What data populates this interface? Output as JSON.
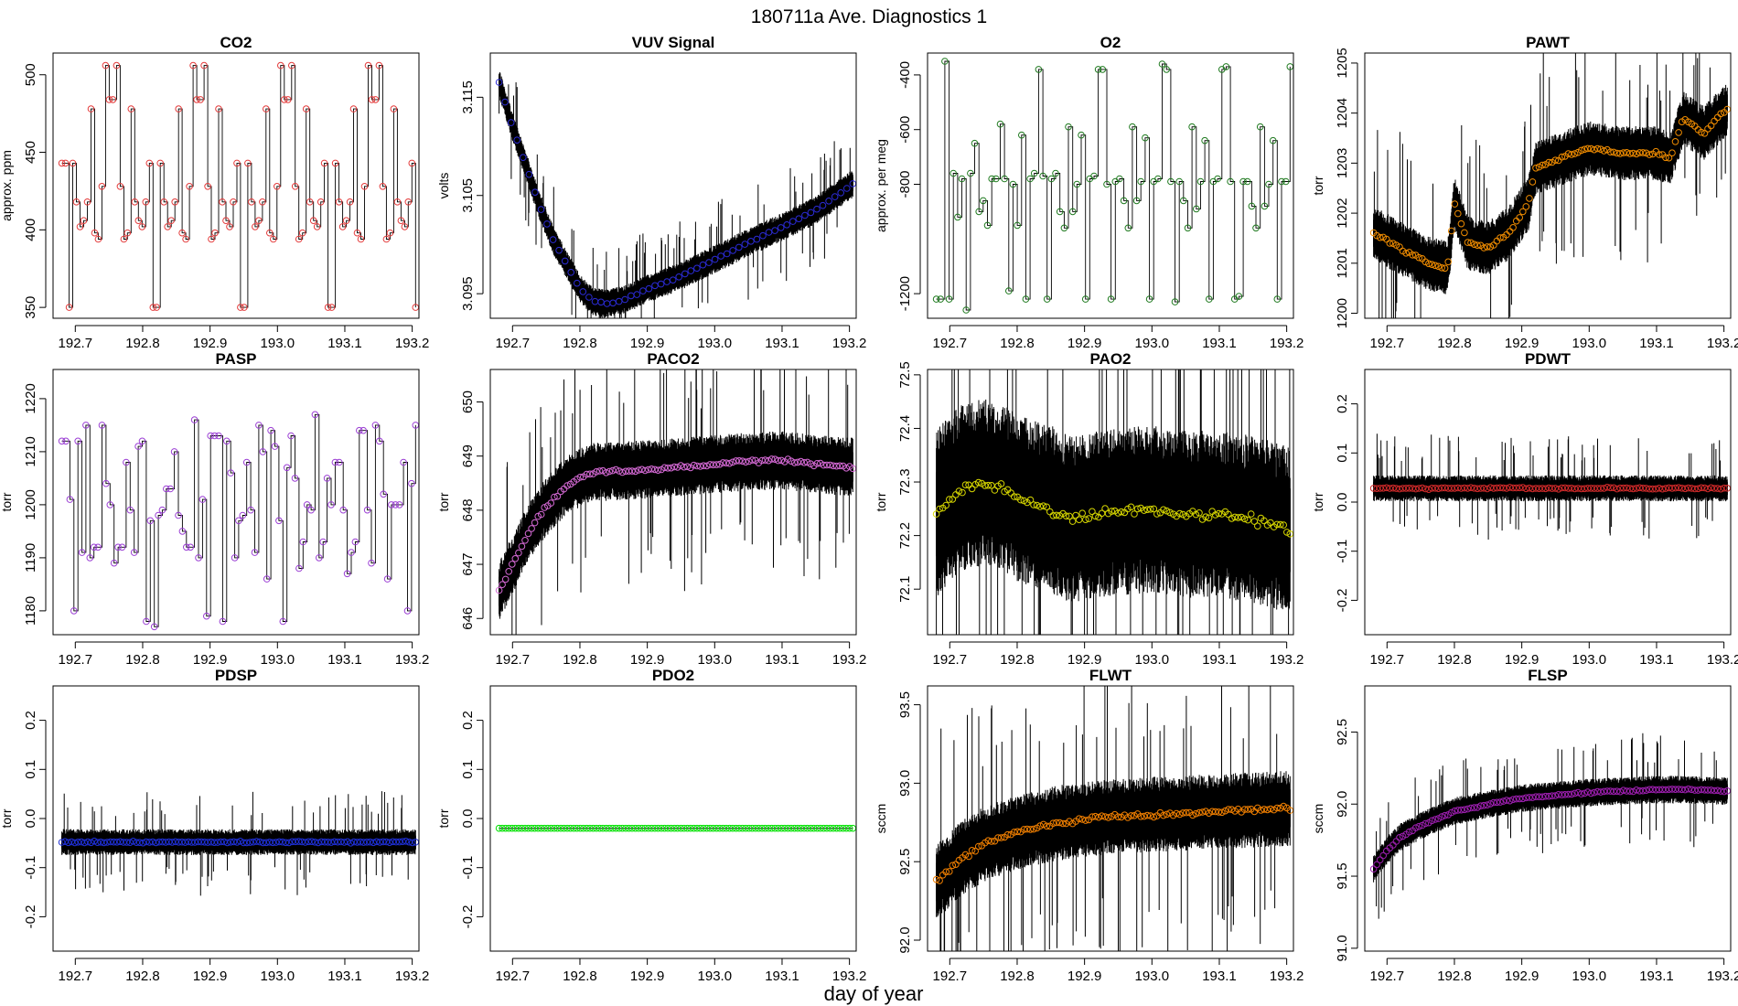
{
  "figure": {
    "title": "180711a   Ave. Diagnostics 1",
    "xlabel": "day of year"
  },
  "colors": {
    "CO2": "#e33b3b",
    "VUV": "#2b2bd6",
    "O2": "#1f7a1f",
    "PAWT": "#f08c00",
    "PASP": "#9b3fd4",
    "PACO2": "#d469d4",
    "PAO2": "#d6d600",
    "PDWT": "#d12a2a",
    "PDSP": "#1e2fd6",
    "PDO2": "#00e000",
    "FLWT": "#f07f00",
    "FLSP": "#9e1fb0"
  },
  "chart_data": [
    {
      "id": "CO2",
      "type": "line",
      "title": "CO2",
      "ylabel": "approx. ppm",
      "xlim": [
        192.667,
        193.21
      ],
      "ylim": [
        343,
        514
      ],
      "xticks": [
        192.7,
        192.8,
        192.9,
        193.0,
        193.1,
        193.2
      ],
      "xtick_labels": [
        "192.7",
        "192.8",
        "192.9",
        "193.0",
        "193.1",
        "193.2"
      ],
      "yticks": [
        350,
        400,
        450,
        500
      ],
      "ytick_labels": [
        "350",
        "400",
        "450",
        "500"
      ],
      "x_start": 192.68,
      "x_end": 193.205,
      "levels": [
        443,
        443,
        350,
        443,
        418,
        402,
        406,
        418,
        478,
        398,
        394,
        428,
        506,
        484,
        484,
        506,
        428,
        394,
        398,
        478,
        418,
        406,
        402,
        418,
        443,
        350,
        350,
        443,
        418,
        402,
        406,
        418,
        478,
        398,
        394,
        428,
        506,
        484,
        484,
        506,
        428,
        394,
        398,
        478,
        418,
        406,
        402,
        418,
        443,
        350,
        350,
        443,
        418,
        402,
        406,
        418,
        478,
        398,
        394,
        428,
        506,
        484,
        484,
        506,
        428,
        394,
        398,
        478,
        418,
        406,
        402,
        418,
        443,
        350,
        350,
        443,
        418,
        402,
        406,
        418,
        478,
        398,
        394,
        428,
        506,
        484,
        484,
        506,
        428,
        394,
        398,
        478,
        418,
        406,
        402,
        418,
        443,
        350
      ],
      "marker_every": 1
    },
    {
      "id": "VUV",
      "type": "line",
      "title": "VUV Signal",
      "ylabel": "volts",
      "xlim": [
        192.667,
        193.21
      ],
      "ylim": [
        3.0925,
        3.1195
      ],
      "xticks": [
        192.7,
        192.8,
        192.9,
        193.0,
        193.1,
        193.2
      ],
      "xtick_labels": [
        "192.7",
        "192.8",
        "192.9",
        "193.0",
        "193.1",
        "193.2"
      ],
      "yticks": [
        3.095,
        3.105,
        3.115
      ],
      "ytick_labels": [
        "3.095",
        "3.105",
        "3.115"
      ],
      "x_start": 192.68,
      "x_end": 193.205,
      "curve_x": [
        192.68,
        192.7,
        192.72,
        192.74,
        192.76,
        192.78,
        192.8,
        192.82,
        192.84,
        192.86,
        192.88,
        192.9,
        192.95,
        193.0,
        193.05,
        193.1,
        193.15,
        193.205
      ],
      "curve_y": [
        3.1165,
        3.112,
        3.108,
        3.104,
        3.1005,
        3.098,
        3.0955,
        3.0942,
        3.094,
        3.0943,
        3.0948,
        3.0955,
        3.0968,
        3.0985,
        3.1002,
        3.1018,
        3.1035,
        3.1062
      ],
      "markers": 60,
      "band": 0.0012
    },
    {
      "id": "O2",
      "type": "line",
      "title": "O2",
      "ylabel": "approx. per meg",
      "xlim": [
        192.667,
        193.21
      ],
      "ylim": [
        -1290,
        -320
      ],
      "xticks": [
        192.7,
        192.8,
        192.9,
        193.0,
        193.1,
        193.2
      ],
      "xtick_labels": [
        "192.7",
        "192.8",
        "192.9",
        "193.0",
        "193.1",
        "193.2"
      ],
      "yticks": [
        -1200,
        -800,
        -600,
        -400
      ],
      "ytick_labels": [
        "-1200",
        "-800",
        "-600",
        "-400"
      ],
      "x_start": 192.68,
      "x_end": 193.205,
      "levels": [
        -1220,
        -1220,
        -350,
        -1220,
        -760,
        -920,
        -780,
        -1260,
        -760,
        -650,
        -900,
        -860,
        -950,
        -780,
        -780,
        -580,
        -780,
        -1190,
        -800,
        -950,
        -620,
        -1220,
        -780,
        -760,
        -380,
        -770,
        -1220,
        -780,
        -760,
        -900,
        -960,
        -590,
        -900,
        -800,
        -620,
        -1220,
        -780,
        -770,
        -380,
        -380,
        -800,
        -1220,
        -790,
        -780,
        -860,
        -960,
        -590,
        -860,
        -790,
        -630,
        -1220,
        -790,
        -780,
        -360,
        -380,
        -790,
        -1230,
        -790,
        -860,
        -960,
        -590,
        -890,
        -790,
        -640,
        -1220,
        -790,
        -780,
        -380,
        -370,
        -790,
        -1220,
        -1210,
        -790,
        -790,
        -880,
        -960,
        -590,
        -880,
        -800,
        -640,
        -1220,
        -790,
        -790,
        -370
      ],
      "marker_every": 1
    },
    {
      "id": "PAWT",
      "type": "line",
      "title": "PAWT",
      "ylabel": "torr",
      "xlim": [
        192.667,
        193.21
      ],
      "ylim": [
        1199.9,
        1205.2
      ],
      "xticks": [
        192.7,
        192.8,
        192.9,
        193.0,
        193.1,
        193.2
      ],
      "xtick_labels": [
        "192.7",
        "192.8",
        "192.9",
        "193.0",
        "193.1",
        "193.2"
      ],
      "yticks": [
        1200,
        1201,
        1202,
        1203,
        1204,
        1205
      ],
      "ytick_labels": [
        "1200",
        "1201",
        "1202",
        "1203",
        "1204",
        "1205"
      ],
      "x_start": 192.68,
      "x_end": 193.205,
      "curve_x": [
        192.68,
        192.72,
        192.76,
        192.79,
        192.8,
        192.82,
        192.85,
        192.88,
        192.91,
        192.92,
        192.96,
        193.0,
        193.05,
        193.1,
        193.12,
        193.14,
        193.17,
        193.205
      ],
      "curve_y": [
        1201.6,
        1201.3,
        1201.0,
        1200.9,
        1202.2,
        1201.4,
        1201.3,
        1201.6,
        1202.2,
        1202.9,
        1203.1,
        1203.3,
        1203.2,
        1203.2,
        1203.1,
        1203.9,
        1203.6,
        1204.1
      ],
      "markers": 110,
      "band": 0.45
    },
    {
      "id": "PASP",
      "type": "line",
      "title": "PASP",
      "ylabel": "torr",
      "xlim": [
        192.667,
        193.21
      ],
      "ylim": [
        1175.5,
        1225.5
      ],
      "xticks": [
        192.7,
        192.8,
        192.9,
        193.0,
        193.1,
        193.2
      ],
      "xtick_labels": [
        "192.7",
        "192.8",
        "192.9",
        "193.0",
        "193.1",
        "193.2"
      ],
      "yticks": [
        1180,
        1190,
        1200,
        1210,
        1220
      ],
      "ytick_labels": [
        "1180",
        "1190",
        "1200",
        "1210",
        "1220"
      ],
      "x_start": 192.68,
      "x_end": 193.205,
      "levels": [
        1212,
        1212,
        1201,
        1180,
        1212,
        1191,
        1215,
        1190,
        1192,
        1192,
        1215,
        1204,
        1200,
        1189,
        1192,
        1192,
        1208,
        1199,
        1191,
        1211,
        1212,
        1178,
        1197,
        1177,
        1198,
        1199,
        1203,
        1203,
        1210,
        1198,
        1195,
        1192,
        1192,
        1216,
        1190,
        1201,
        1179,
        1213,
        1213,
        1213,
        1178,
        1212,
        1206,
        1190,
        1197,
        1198,
        1208,
        1199,
        1191,
        1215,
        1210,
        1186,
        1214,
        1211,
        1197,
        1178,
        1207,
        1213,
        1205,
        1188,
        1193,
        1200,
        1199,
        1217,
        1190,
        1193,
        1205,
        1200,
        1208,
        1208,
        1199,
        1187,
        1191,
        1193,
        1214,
        1214,
        1199,
        1189,
        1215,
        1212,
        1202,
        1186,
        1200,
        1200,
        1200,
        1208,
        1180,
        1204,
        1215
      ],
      "marker_every": 1
    },
    {
      "id": "PACO2",
      "type": "line",
      "title": "PACO2",
      "ylabel": "torr",
      "xlim": [
        192.667,
        193.21
      ],
      "ylim": [
        645.7,
        650.6
      ],
      "xticks": [
        192.7,
        192.8,
        192.9,
        193.0,
        193.1,
        193.2
      ],
      "xtick_labels": [
        "192.7",
        "192.8",
        "192.9",
        "193.0",
        "193.1",
        "193.2"
      ],
      "yticks": [
        646,
        647,
        648,
        649,
        650
      ],
      "ytick_labels": [
        "646",
        "647",
        "648",
        "649",
        "650"
      ],
      "x_start": 192.68,
      "x_end": 193.205,
      "curve_x": [
        192.68,
        192.7,
        192.72,
        192.74,
        192.76,
        192.78,
        192.8,
        192.82,
        192.85,
        192.9,
        192.95,
        193.0,
        193.05,
        193.1,
        193.15,
        193.205
      ],
      "curve_y": [
        646.5,
        647.0,
        647.5,
        647.9,
        648.2,
        648.45,
        648.6,
        648.7,
        648.72,
        648.75,
        648.8,
        648.85,
        648.9,
        648.92,
        648.85,
        648.8
      ],
      "markers": 110,
      "band": 0.45
    },
    {
      "id": "PAO2",
      "type": "line",
      "title": "PAO2",
      "ylabel": "torr",
      "xlim": [
        192.667,
        193.21
      ],
      "ylim": [
        72.015,
        72.51
      ],
      "xticks": [
        192.7,
        192.8,
        192.9,
        193.0,
        193.1,
        193.2
      ],
      "xtick_labels": [
        "192.7",
        "192.8",
        "192.9",
        "193.0",
        "193.1",
        "193.2"
      ],
      "yticks": [
        72.1,
        72.2,
        72.3,
        72.4,
        72.5
      ],
      "ytick_labels": [
        "72.1",
        "72.2",
        "72.3",
        "72.4",
        "72.5"
      ],
      "x_start": 192.68,
      "x_end": 193.205,
      "curve_x": [
        192.68,
        192.7,
        192.72,
        192.75,
        192.78,
        192.8,
        192.85,
        192.88,
        192.92,
        193.0,
        193.05,
        193.1,
        193.15,
        193.205
      ],
      "curve_y": [
        72.24,
        72.27,
        72.29,
        72.3,
        72.29,
        72.27,
        72.25,
        72.23,
        72.24,
        72.25,
        72.24,
        72.24,
        72.23,
        72.21
      ],
      "markers": 110,
      "band": 0.13
    },
    {
      "id": "PDWT",
      "type": "line",
      "title": "PDWT",
      "ylabel": "torr",
      "xlim": [
        192.667,
        193.21
      ],
      "ylim": [
        -0.27,
        0.27
      ],
      "xticks": [
        192.7,
        192.8,
        192.9,
        193.0,
        193.1,
        193.2
      ],
      "xtick_labels": [
        "192.7",
        "192.8",
        "192.9",
        "193.0",
        "193.1",
        "193.2"
      ],
      "yticks": [
        -0.2,
        -0.1,
        0.0,
        0.1,
        0.2
      ],
      "ytick_labels": [
        "-0.2",
        "-0.1",
        "0.0",
        "0.1",
        "0.2"
      ],
      "x_start": 192.68,
      "x_end": 193.205,
      "curve_x": [
        192.68,
        193.205
      ],
      "curve_y": [
        0.028,
        0.028
      ],
      "markers": 110,
      "band": 0.022
    },
    {
      "id": "PDSP",
      "type": "line",
      "title": "PDSP",
      "ylabel": "torr",
      "xlim": [
        192.667,
        193.21
      ],
      "ylim": [
        -0.27,
        0.27
      ],
      "xticks": [
        192.7,
        192.8,
        192.9,
        193.0,
        193.1,
        193.2
      ],
      "xtick_labels": [
        "192.7",
        "192.8",
        "192.9",
        "193.0",
        "193.1",
        "193.2"
      ],
      "yticks": [
        -0.2,
        -0.1,
        0.0,
        0.1,
        0.2
      ],
      "ytick_labels": [
        "-0.2",
        "-0.1",
        "0.0",
        "0.1",
        "0.2"
      ],
      "x_start": 192.68,
      "x_end": 193.205,
      "curve_x": [
        192.68,
        193.205
      ],
      "curve_y": [
        -0.048,
        -0.048
      ],
      "markers": 110,
      "band": 0.022
    },
    {
      "id": "PDO2",
      "type": "line",
      "title": "PDO2",
      "ylabel": "torr",
      "xlim": [
        192.667,
        193.21
      ],
      "ylim": [
        -0.27,
        0.27
      ],
      "xticks": [
        192.7,
        192.8,
        192.9,
        193.0,
        193.1,
        193.2
      ],
      "xtick_labels": [
        "192.7",
        "192.8",
        "192.9",
        "193.0",
        "193.1",
        "193.2"
      ],
      "yticks": [
        -0.2,
        -0.1,
        0.0,
        0.1,
        0.2
      ],
      "ytick_labels": [
        "-0.2",
        "-0.1",
        "0.0",
        "0.1",
        "0.2"
      ],
      "x_start": 192.68,
      "x_end": 193.205,
      "curve_x": [
        192.68,
        193.205
      ],
      "curve_y": [
        -0.02,
        -0.02
      ],
      "markers": 110,
      "band": 0.0
    },
    {
      "id": "FLWT",
      "type": "line",
      "title": "FLWT",
      "ylabel": "sccm",
      "xlim": [
        192.667,
        193.21
      ],
      "ylim": [
        91.93,
        93.62
      ],
      "xticks": [
        192.7,
        192.8,
        192.9,
        193.0,
        193.1,
        193.2
      ],
      "xtick_labels": [
        "192.7",
        "192.8",
        "192.9",
        "193.0",
        "193.1",
        "193.2"
      ],
      "yticks": [
        92.0,
        92.5,
        93.0,
        93.5
      ],
      "ytick_labels": [
        "92.0",
        "92.5",
        "93.0",
        "93.5"
      ],
      "x_start": 192.68,
      "x_end": 193.205,
      "curve_x": [
        192.68,
        192.7,
        192.72,
        192.75,
        192.8,
        192.85,
        192.9,
        192.95,
        193.0,
        193.05,
        193.1,
        193.15,
        193.205
      ],
      "curve_y": [
        92.37,
        92.45,
        92.53,
        92.61,
        92.69,
        92.74,
        92.77,
        92.79,
        92.8,
        92.81,
        92.82,
        92.83,
        92.84
      ],
      "markers": 110,
      "band": 0.2
    },
    {
      "id": "FLSP",
      "type": "line",
      "title": "FLSP",
      "ylabel": "sccm",
      "xlim": [
        192.667,
        193.21
      ],
      "ylim": [
        90.98,
        92.82
      ],
      "xticks": [
        192.7,
        192.8,
        192.9,
        193.0,
        193.1,
        193.2
      ],
      "xtick_labels": [
        "192.7",
        "192.8",
        "192.9",
        "193.0",
        "193.1",
        "193.2"
      ],
      "yticks": [
        91.0,
        91.5,
        92.0,
        92.5
      ],
      "ytick_labels": [
        "91.0",
        "91.5",
        "92.0",
        "92.5"
      ],
      "x_start": 192.68,
      "x_end": 193.205,
      "curve_x": [
        192.68,
        192.7,
        192.72,
        192.75,
        192.8,
        192.85,
        192.9,
        192.95,
        193.0,
        193.05,
        193.1,
        193.15,
        193.205
      ],
      "curve_y": [
        91.55,
        91.68,
        91.77,
        91.85,
        91.95,
        92.0,
        92.04,
        92.06,
        92.08,
        92.09,
        92.1,
        92.1,
        92.09
      ],
      "markers": 110,
      "band": 0.08
    }
  ]
}
